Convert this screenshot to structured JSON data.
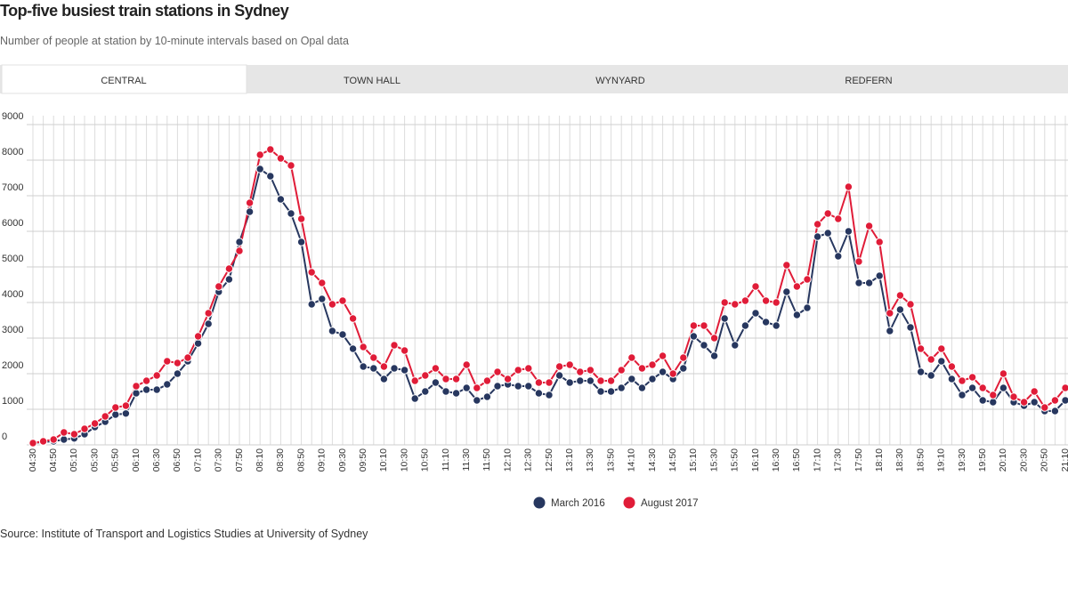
{
  "tabs": [
    "CENTRAL",
    "TOWN HALL",
    "WYNYARD",
    "REDFERN"
  ],
  "source": "Source: Institute of Transport and Logistics Studies at University of Sydney",
  "chart_data": {
    "type": "line",
    "title": "Top-five busiest train stations in Sydney",
    "subtitle": "Number of people at station by 10-minute intervals based on Opal data",
    "categories": [
      "04:30",
      null,
      "04:50",
      null,
      "05:10",
      null,
      "05:30",
      null,
      "05:50",
      null,
      "06:10",
      null,
      "06:30",
      null,
      "06:50",
      null,
      "07:10",
      null,
      "07:30",
      null,
      "07:50",
      null,
      "08:10",
      null,
      "08:30",
      null,
      "08:50",
      null,
      "09:10",
      null,
      "09:30",
      null,
      "09:50",
      null,
      "10:10",
      null,
      "10:30",
      null,
      "10:50",
      null,
      "11:10",
      null,
      "11:30",
      null,
      "11:50",
      null,
      "12:10",
      null,
      "12:30",
      null,
      "12:50",
      null,
      "13:10",
      null,
      "13:30",
      null,
      "13:50",
      null,
      "14:10",
      null,
      "14:30",
      null,
      "14:50",
      null,
      "15:10",
      null,
      "15:30",
      null,
      "15:50",
      null,
      "16:10",
      null,
      "16:30",
      null,
      "16:50",
      null,
      "17:10",
      null,
      "17:30",
      null,
      "17:50",
      null,
      "18:10",
      null,
      "18:30",
      null,
      "18:50",
      null,
      "19:10",
      null,
      "19:30",
      null,
      "19:50",
      null,
      "20:10",
      null,
      "20:30",
      null,
      "20:50",
      null,
      "21:10"
    ],
    "series": [
      {
        "name": "March 2016",
        "color": "#27375f",
        "values": [
          50,
          80,
          100,
          150,
          180,
          300,
          500,
          650,
          850,
          880,
          1450,
          1550,
          1550,
          1700,
          2000,
          2350,
          2850,
          3400,
          4300,
          4650,
          5700,
          6550,
          7750,
          7550,
          6900,
          6500,
          5700,
          3950,
          4100,
          3200,
          3100,
          2700,
          2200,
          2150,
          1850,
          2150,
          2100,
          1300,
          1500,
          1750,
          1500,
          1450,
          1600,
          1250,
          1350,
          1650,
          1700,
          1650,
          1650,
          1450,
          1400,
          1950,
          1750,
          1800,
          1800,
          1500,
          1500,
          1600,
          1850,
          1600,
          1850,
          2050,
          1850,
          2150,
          3050,
          2800,
          2500,
          3550,
          2800,
          3350,
          3700,
          3450,
          3350,
          4300,
          3650,
          3850,
          5850,
          5950,
          5300,
          6000,
          4550,
          4550,
          4750,
          3200,
          3800,
          3300,
          2050,
          1950,
          2350,
          1850,
          1400,
          1600,
          1250,
          1200,
          1600,
          1200,
          1100,
          1200,
          950,
          950,
          1250
        ]
      },
      {
        "name": "August 2017",
        "color": "#e01c38",
        "values": [
          50,
          100,
          150,
          350,
          300,
          450,
          600,
          800,
          1050,
          1100,
          1650,
          1800,
          1950,
          2350,
          2300,
          2450,
          3050,
          3700,
          4450,
          4950,
          5450,
          6800,
          8150,
          8300,
          8050,
          7850,
          6350,
          4850,
          4550,
          3950,
          4050,
          3550,
          2750,
          2450,
          2200,
          2800,
          2650,
          1800,
          1950,
          2150,
          1850,
          1850,
          2250,
          1600,
          1800,
          2050,
          1850,
          2100,
          2150,
          1750,
          1750,
          2200,
          2250,
          2050,
          2100,
          1800,
          1800,
          2100,
          2450,
          2150,
          2250,
          2500,
          2000,
          2450,
          3350,
          3350,
          3000,
          4000,
          3950,
          4050,
          4450,
          4050,
          4000,
          5050,
          4450,
          4650,
          6200,
          6500,
          6350,
          7250,
          5150,
          6150,
          5700,
          3700,
          4200,
          3950,
          2700,
          2400,
          2700,
          2200,
          1800,
          1900,
          1600,
          1400,
          2000,
          1350,
          1200,
          1500,
          1050,
          1250,
          1600
        ]
      }
    ],
    "ylim": [
      0,
      9000
    ],
    "yticks": [
      0,
      1000,
      2000,
      3000,
      4000,
      5000,
      6000,
      7000,
      8000,
      9000
    ],
    "grid": true
  }
}
